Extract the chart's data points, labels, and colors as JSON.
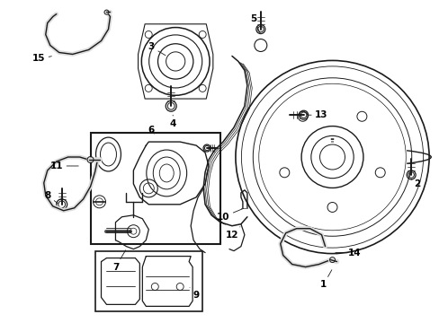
{
  "bg_color": "#ffffff",
  "fig_width": 4.89,
  "fig_height": 3.6,
  "dpi": 100,
  "line_color": "#1a1a1a",
  "label_color": "#000000",
  "label_fontsize": 7.5,
  "label_fontweight": "bold",
  "arrow_lw": 0.6,
  "parts_lw": 0.9
}
